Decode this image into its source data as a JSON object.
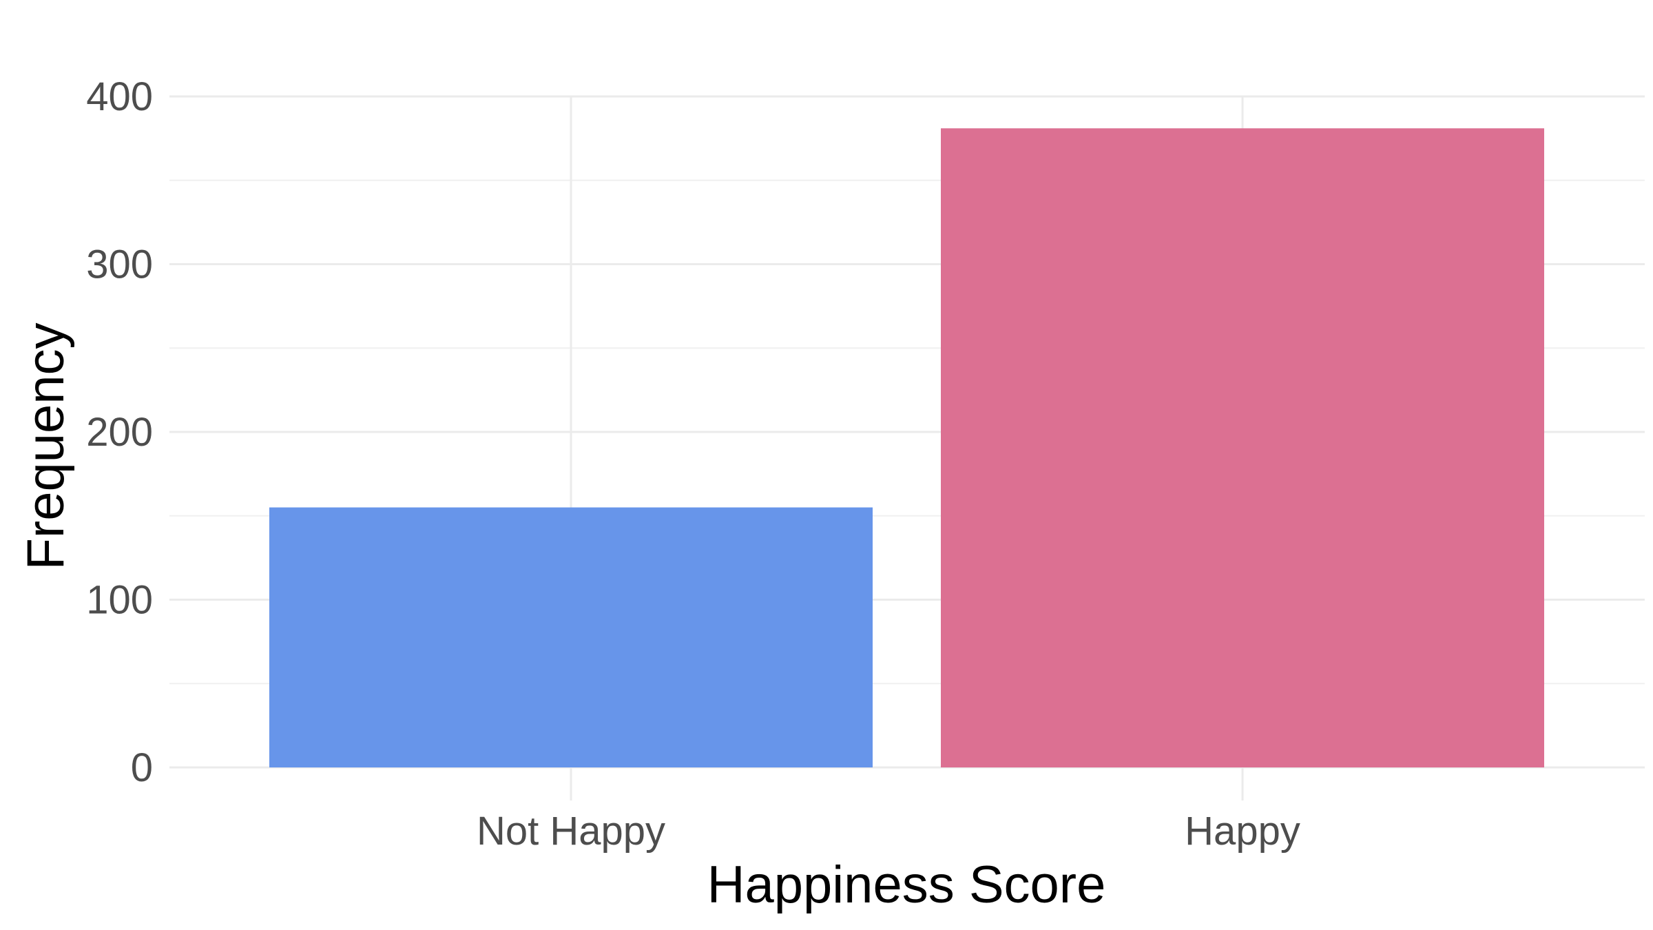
{
  "chart_data": {
    "type": "bar",
    "title": "",
    "xlabel": "Happiness Score",
    "ylabel": "Frequency",
    "categories": [
      "Not Happy",
      "Happy"
    ],
    "values": [
      155,
      381
    ],
    "colors": [
      "#6795EA",
      "#DC7092"
    ],
    "ylim": [
      0,
      400
    ],
    "yticks": [
      0,
      100,
      200,
      300,
      400
    ],
    "ytick_labels": [
      "0",
      "100",
      "200",
      "300",
      "400"
    ],
    "grid": true,
    "legend": "none"
  }
}
